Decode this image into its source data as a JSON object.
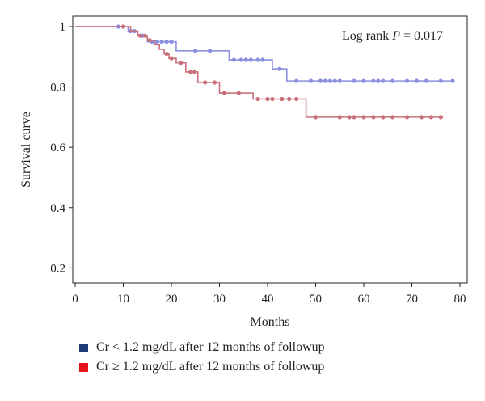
{
  "chart_data": {
    "type": "line",
    "subtype": "kaplan-meier",
    "xlabel": "Months",
    "ylabel": "Survival curve",
    "annotation": {
      "prefix": "Log rank ",
      "italic": "P",
      "suffix": " = 0.017"
    },
    "xlim": [
      0,
      80
    ],
    "ylim": [
      0.15,
      1.0
    ],
    "x_ticks": [
      "0",
      "10",
      "20",
      "30",
      "40",
      "50",
      "60",
      "70",
      "80"
    ],
    "x_tick_values": [
      0,
      10,
      20,
      30,
      40,
      50,
      60,
      70,
      80
    ],
    "y_ticks": [
      "0.2",
      "0.4",
      "0.6",
      "0.8",
      "1"
    ],
    "y_tick_values": [
      0.2,
      0.4,
      0.6,
      0.8,
      1.0
    ],
    "grid": false,
    "legend_placement": "bottom-left, below plot",
    "series": [
      {
        "name": "Cr < 1.2 mg/dL after 12 months of followup",
        "legend_color": "#1f3a78",
        "line_color": "#8a8fe0",
        "steps": [
          [
            0,
            1.0
          ],
          [
            9.5,
            1.0
          ],
          [
            11,
            0.985
          ],
          [
            13,
            0.97
          ],
          [
            15,
            0.95
          ],
          [
            21,
            0.92
          ],
          [
            32,
            0.89
          ],
          [
            41,
            0.86
          ],
          [
            44,
            0.82
          ],
          [
            78.5,
            0.82
          ]
        ],
        "censored": [
          [
            9,
            1.0
          ],
          [
            10,
            1.0
          ],
          [
            11.5,
            0.985
          ],
          [
            12.3,
            0.985
          ],
          [
            14,
            0.97
          ],
          [
            16,
            0.95
          ],
          [
            17,
            0.95
          ],
          [
            18,
            0.95
          ],
          [
            19,
            0.95
          ],
          [
            20,
            0.95
          ],
          [
            25,
            0.92
          ],
          [
            28,
            0.92
          ],
          [
            33,
            0.89
          ],
          [
            34.5,
            0.89
          ],
          [
            35.5,
            0.89
          ],
          [
            36.5,
            0.89
          ],
          [
            38,
            0.89
          ],
          [
            39,
            0.89
          ],
          [
            42.5,
            0.86
          ],
          [
            46,
            0.82
          ],
          [
            49,
            0.82
          ],
          [
            51,
            0.82
          ],
          [
            52,
            0.82
          ],
          [
            53,
            0.82
          ],
          [
            54,
            0.82
          ],
          [
            55,
            0.82
          ],
          [
            58,
            0.82
          ],
          [
            60,
            0.82
          ],
          [
            62,
            0.82
          ],
          [
            63,
            0.82
          ],
          [
            64,
            0.82
          ],
          [
            66,
            0.82
          ],
          [
            69,
            0.82
          ],
          [
            71,
            0.82
          ],
          [
            73,
            0.82
          ],
          [
            76,
            0.82
          ],
          [
            78.5,
            0.82
          ]
        ]
      },
      {
        "name": "Cr ≥ 1.2 mg/dL after 12 months of followup",
        "legend_color": "#e8141c",
        "line_color": "#c8707a",
        "steps": [
          [
            0,
            1.0
          ],
          [
            10,
            1.0
          ],
          [
            11.5,
            0.985
          ],
          [
            13,
            0.97
          ],
          [
            15,
            0.955
          ],
          [
            16.5,
            0.94
          ],
          [
            17.5,
            0.925
          ],
          [
            18.5,
            0.91
          ],
          [
            19.5,
            0.895
          ],
          [
            21,
            0.88
          ],
          [
            23,
            0.85
          ],
          [
            25.5,
            0.815
          ],
          [
            30,
            0.78
          ],
          [
            37,
            0.76
          ],
          [
            48,
            0.7
          ],
          [
            76.5,
            0.7
          ]
        ],
        "censored": [
          [
            10,
            1.0
          ],
          [
            13.5,
            0.97
          ],
          [
            14.5,
            0.97
          ],
          [
            15.5,
            0.955
          ],
          [
            19,
            0.91
          ],
          [
            20,
            0.895
          ],
          [
            22,
            0.88
          ],
          [
            24,
            0.85
          ],
          [
            24.8,
            0.85
          ],
          [
            27,
            0.815
          ],
          [
            29,
            0.815
          ],
          [
            31,
            0.78
          ],
          [
            34,
            0.78
          ],
          [
            38,
            0.76
          ],
          [
            40,
            0.76
          ],
          [
            41,
            0.76
          ],
          [
            43,
            0.76
          ],
          [
            44.5,
            0.76
          ],
          [
            46,
            0.76
          ],
          [
            50,
            0.7
          ],
          [
            55,
            0.7
          ],
          [
            57,
            0.7
          ],
          [
            58,
            0.7
          ],
          [
            60,
            0.7
          ],
          [
            62,
            0.7
          ],
          [
            64,
            0.7
          ],
          [
            66,
            0.7
          ],
          [
            69,
            0.7
          ],
          [
            72,
            0.7
          ],
          [
            74,
            0.7
          ],
          [
            76,
            0.7
          ]
        ]
      }
    ]
  }
}
